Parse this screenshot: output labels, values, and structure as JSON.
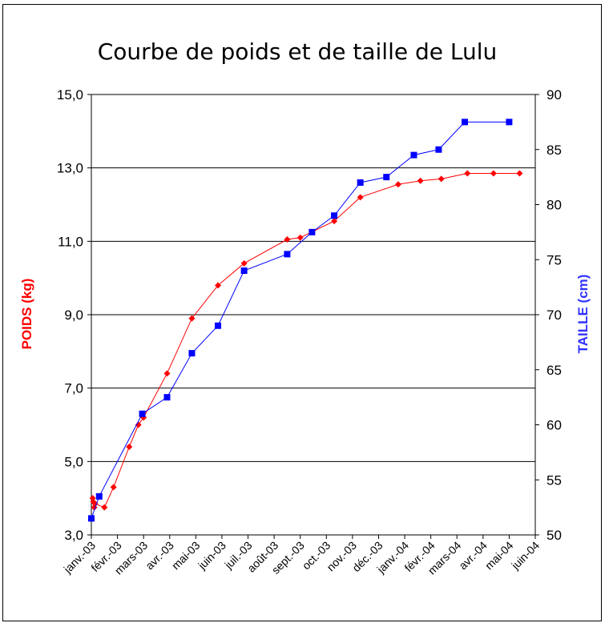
{
  "chart_data": {
    "type": "line",
    "title": "Courbe de poids et de taille de Lulu",
    "y_left_label": "POIDS (kg)",
    "y_right_label": "TAILLE (cm)",
    "y_left_range": [
      3.0,
      15.0
    ],
    "y_left_ticks": [
      "3,0",
      "5,0",
      "7,0",
      "9,0",
      "11,0",
      "13,0",
      "15,0"
    ],
    "y_right_range": [
      50,
      90
    ],
    "y_right_ticks": [
      "50",
      "55",
      "60",
      "65",
      "70",
      "75",
      "80",
      "85",
      "90"
    ],
    "x_tick_labels": [
      "janv.-03",
      "févr.-03",
      "mars-03",
      "avr.-03",
      "mai-03",
      "juin-03",
      "juil.-03",
      "août-03",
      "sept.-03",
      "oct.-03",
      "nov.-03",
      "déc.-03",
      "janv.-04",
      "févr.-04",
      "mars-04",
      "avr.-04",
      "mai-04",
      "juin-04"
    ],
    "grid": "horizontal",
    "series": [
      {
        "name": "POIDS (kg)",
        "axis": "left",
        "color": "#ff0000",
        "marker": "diamond",
        "x": [
          0.05,
          0.08,
          0.11,
          0.14,
          0.5,
          0.85,
          1.45,
          1.8,
          2.0,
          2.9,
          3.85,
          4.85,
          5.85,
          7.5,
          8.0,
          9.3,
          10.3,
          11.75,
          12.6,
          13.4,
          14.4,
          15.4,
          16.4
        ],
        "values": [
          4.0,
          3.9,
          3.75,
          3.85,
          3.75,
          4.3,
          5.4,
          6.0,
          6.2,
          7.4,
          8.9,
          9.8,
          10.4,
          11.05,
          11.1,
          11.55,
          12.2,
          12.55,
          12.65,
          12.7,
          12.85,
          12.85,
          12.85
        ]
      },
      {
        "name": "TAILLE (cm)",
        "axis": "right",
        "color": "#0000ff",
        "marker": "square",
        "x": [
          0.0,
          0.3,
          1.95,
          2.9,
          3.85,
          4.85,
          5.85,
          7.5,
          8.45,
          9.3,
          10.3,
          11.3,
          12.35,
          13.3,
          14.3,
          16.0
        ],
        "values": [
          51.5,
          53.5,
          61.0,
          62.5,
          66.5,
          69.0,
          74.0,
          75.5,
          77.5,
          79.0,
          82.0,
          82.5,
          84.5,
          85.0,
          87.5,
          87.5
        ]
      }
    ]
  }
}
